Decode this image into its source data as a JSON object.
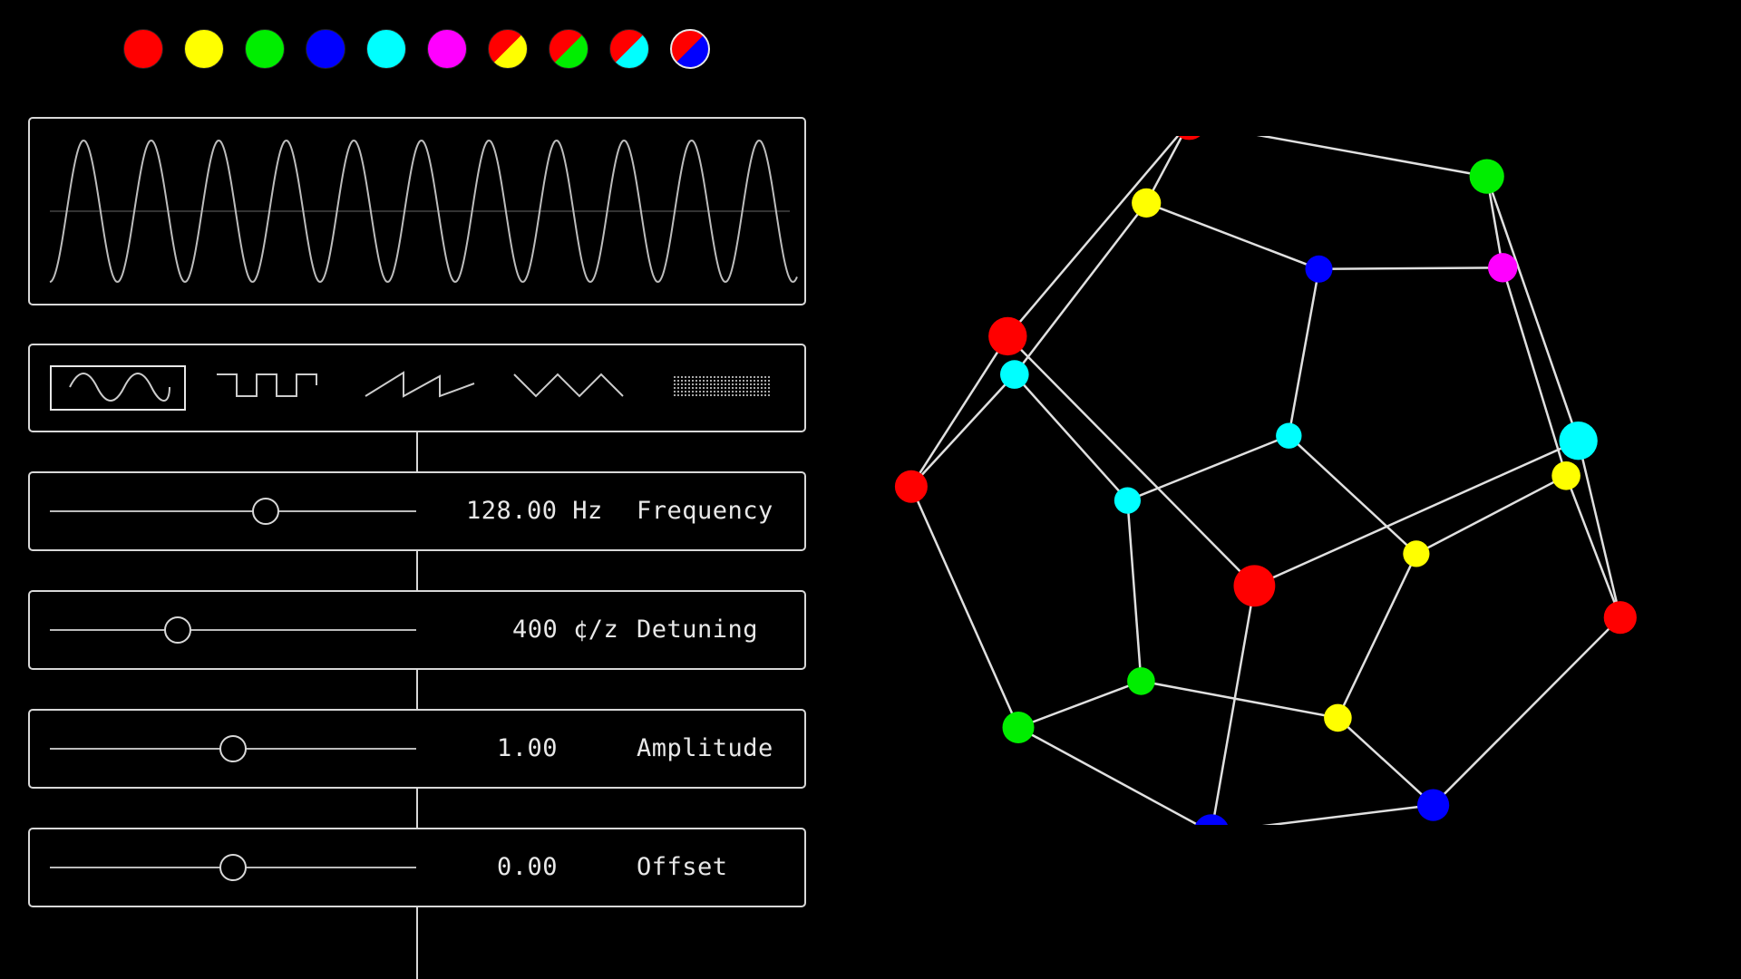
{
  "palette": {
    "swatches": [
      {
        "name": "red",
        "colors": [
          "#ff0000"
        ]
      },
      {
        "name": "yellow",
        "colors": [
          "#ffff00"
        ]
      },
      {
        "name": "green",
        "colors": [
          "#00ee00"
        ]
      },
      {
        "name": "blue",
        "colors": [
          "#0000ff"
        ]
      },
      {
        "name": "cyan",
        "colors": [
          "#00ffff"
        ]
      },
      {
        "name": "magenta",
        "colors": [
          "#ff00ff"
        ]
      },
      {
        "name": "red-yellow",
        "colors": [
          "#ff0000",
          "#ffff00"
        ]
      },
      {
        "name": "red-green",
        "colors": [
          "#ff0000",
          "#00ee00"
        ]
      },
      {
        "name": "red-cyan",
        "colors": [
          "#ff0000",
          "#00ffff"
        ]
      },
      {
        "name": "red-blue",
        "colors": [
          "#ff0000",
          "#0000ff"
        ]
      }
    ],
    "selected_index": 9
  },
  "waveform": {
    "shapes": [
      "sine",
      "square",
      "sawtooth",
      "triangle",
      "noise"
    ],
    "selected": "sine"
  },
  "controls": {
    "frequency": {
      "value": "128.00 Hz",
      "label": "Frequency",
      "level": 0.59
    },
    "detuning": {
      "value": "400 ¢/z",
      "label": "Detuning",
      "level": 0.35
    },
    "amplitude": {
      "value": "1.00",
      "label": "Amplitude",
      "level": 0.5
    },
    "offset": {
      "value": "0.00",
      "label": "Offset",
      "level": 0.5
    }
  },
  "colors": {
    "red": "#ff0000",
    "yellow": "#ffff00",
    "green": "#00ee00",
    "blue": "#0000ff",
    "cyan": "#00ffff",
    "magenta": "#ff00ff",
    "edge": "#e0e0e0"
  },
  "graph": {
    "type": "dodecahedron",
    "node_colors": [
      "cyan",
      "red",
      "green",
      "red",
      "cyan",
      "magenta",
      "yellow",
      "red",
      "cyan",
      "yellow",
      "red",
      "green",
      "blue",
      "red",
      "green",
      "blue",
      "yellow",
      "cyan",
      "blue",
      "yellow"
    ]
  }
}
